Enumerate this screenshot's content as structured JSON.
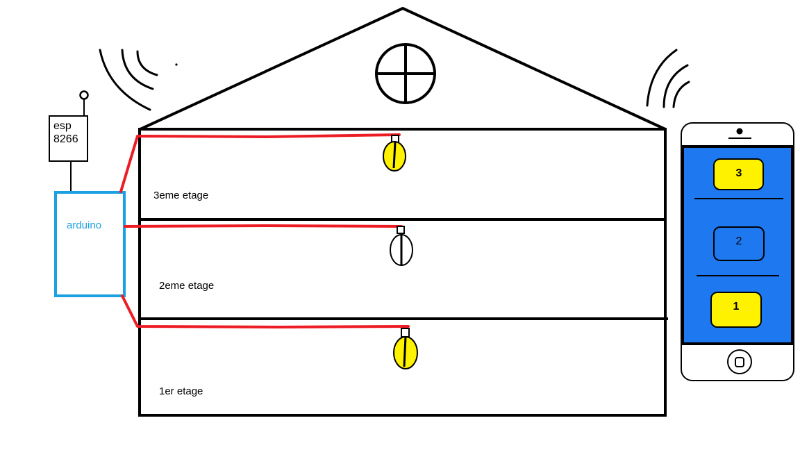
{
  "colors": {
    "background": "#ffffff",
    "outline": "#000000",
    "wire": "#ed1c24",
    "bulb_on": "#fff200",
    "bulb_off": "#ffffff",
    "arduino": "#1ba1e2",
    "phone_screen": "#1e78f0",
    "phone_button_on": "#fff200",
    "phone_button_off": "#1e78f0"
  },
  "esp": {
    "line1": "esp",
    "line2": "8266"
  },
  "arduino": {
    "label": "arduino"
  },
  "floors": [
    {
      "label": "3eme etage",
      "bulb_on": true
    },
    {
      "label": "2eme etage",
      "bulb_on": false
    },
    {
      "label": "1er etage",
      "bulb_on": true
    }
  ],
  "phone": {
    "buttons": [
      {
        "label": "3",
        "on": true
      },
      {
        "label": "2",
        "on": false
      },
      {
        "label": "1",
        "on": true
      }
    ]
  },
  "icons": {
    "attic": "round-window-icon",
    "antenna": "antenna-icon",
    "wifi": "wifi-signal-icon",
    "home_button": "home-button-icon"
  }
}
